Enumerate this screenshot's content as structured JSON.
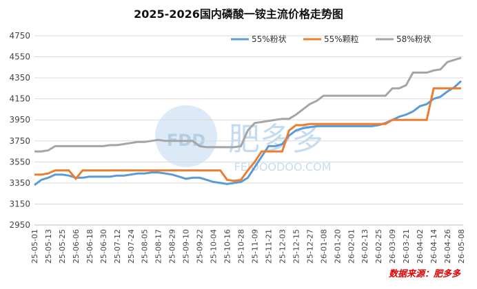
{
  "chart_data": {
    "type": "line",
    "title": "2025-2026国内磷酸一铵主流价格走势图",
    "source": "数据来源：肥多多",
    "watermark": {
      "logo": "FDD",
      "brand": "肥多多",
      "site": "FEIDOODOO.COM"
    },
    "categories": [
      "25-05-01",
      null,
      "25-05-13",
      null,
      "25-05-25",
      null,
      "25-06-06",
      null,
      "25-06-18",
      null,
      "25-06-30",
      null,
      "25-07-12",
      null,
      "25-07-24",
      null,
      "25-08-05",
      null,
      "25-08-17",
      null,
      "25-08-29",
      null,
      "25-09-10",
      null,
      "25-09-22",
      null,
      "25-10-04",
      null,
      "25-10-16",
      null,
      "25-10-28",
      null,
      "25-11-09",
      null,
      "25-11-21",
      null,
      "25-12-03",
      null,
      "25-12-15",
      null,
      "25-12-27",
      null,
      "26-01-08",
      null,
      "26-01-20",
      null,
      "26-02-01",
      null,
      "26-02-13",
      null,
      "26-02-25",
      null,
      "26-03-09",
      null,
      "26-03-21",
      null,
      "26-04-02",
      null,
      "26-04-14",
      null,
      "26-04-26",
      null,
      "26-05-08"
    ],
    "series": [
      {
        "name": "55%粉状",
        "color": "#5b9bd5",
        "values": [
          3330,
          3380,
          3400,
          3430,
          3430,
          3420,
          3400,
          3400,
          3410,
          3410,
          3410,
          3410,
          3420,
          3420,
          3430,
          3440,
          3440,
          3450,
          3450,
          3440,
          3430,
          3410,
          3390,
          3400,
          3400,
          3380,
          3360,
          3350,
          3340,
          3350,
          3360,
          3400,
          3500,
          3600,
          3700,
          3700,
          3720,
          3800,
          3850,
          3870,
          3880,
          3890,
          3890,
          3890,
          3890,
          3890,
          3890,
          3890,
          3890,
          3890,
          3900,
          3920,
          3950,
          3980,
          4000,
          4030,
          4080,
          4100,
          4150,
          4170,
          4220,
          4260,
          4320
        ]
      },
      {
        "name": "55%颗粒",
        "color": "#ed7d31",
        "values": [
          3430,
          3430,
          3440,
          3470,
          3470,
          3470,
          3390,
          3470,
          3470,
          3470,
          3470,
          3470,
          3470,
          3470,
          3470,
          3470,
          3470,
          3470,
          3470,
          3470,
          3470,
          3470,
          3470,
          3470,
          3470,
          3470,
          3470,
          3470,
          3380,
          3370,
          3380,
          3470,
          3550,
          3650,
          3650,
          3650,
          3650,
          3850,
          3900,
          3900,
          3910,
          3910,
          3910,
          3910,
          3910,
          3910,
          3910,
          3910,
          3910,
          3910,
          3910,
          3910,
          3950,
          3950,
          3950,
          3950,
          3950,
          3950,
          4250,
          4250,
          4250,
          4250,
          4250
        ]
      },
      {
        "name": "58%粉状",
        "color": "#a5a5a5",
        "values": [
          3650,
          3650,
          3660,
          3700,
          3700,
          3700,
          3700,
          3700,
          3700,
          3700,
          3700,
          3710,
          3710,
          3720,
          3730,
          3740,
          3740,
          3750,
          3760,
          3750,
          3750,
          3750,
          3750,
          3750,
          3700,
          3690,
          3690,
          3690,
          3690,
          3690,
          3700,
          3850,
          3920,
          3930,
          3940,
          3950,
          3960,
          3960,
          4000,
          4050,
          4100,
          4130,
          4180,
          4180,
          4180,
          4180,
          4180,
          4180,
          4180,
          4180,
          4180,
          4180,
          4250,
          4250,
          4280,
          4400,
          4400,
          4400,
          4420,
          4430,
          4500,
          4520,
          4540
        ]
      }
    ],
    "ylim": [
      2950,
      4750
    ],
    "yticks": [
      2950,
      3150,
      3350,
      3550,
      3750,
      3950,
      4150,
      4350,
      4550,
      4750
    ],
    "grid": true,
    "legend": "top-right"
  }
}
